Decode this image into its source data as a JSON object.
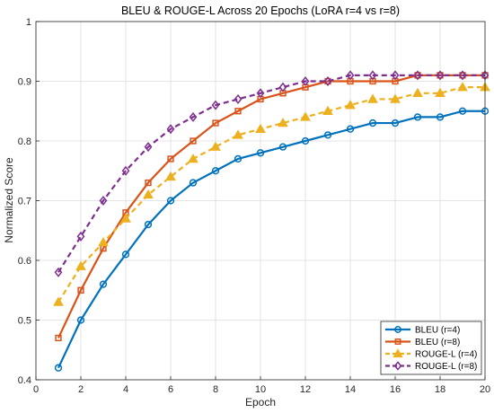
{
  "chart_data": {
    "type": "line",
    "title": "BLEU & ROUGE-L Across 20 Epochs (LoRA r=4 vs r=8)",
    "xlabel": "Epoch",
    "ylabel": "Normalized Score",
    "xlim": [
      0,
      20
    ],
    "ylim": [
      0.4,
      1.0
    ],
    "xticks": [
      "0",
      "2",
      "4",
      "6",
      "8",
      "10",
      "12",
      "14",
      "16",
      "18",
      "20"
    ],
    "yticks": [
      "0.4",
      "0.5",
      "0.6",
      "0.7",
      "0.8",
      "0.9",
      "1"
    ],
    "grid": true,
    "legend_position": "bottom-right",
    "x": [
      1,
      2,
      3,
      4,
      5,
      6,
      7,
      8,
      9,
      10,
      11,
      12,
      13,
      14,
      15,
      16,
      17,
      18,
      19,
      20
    ],
    "series": [
      {
        "name": "BLEU (r=4)",
        "color": "#0072BD",
        "marker": "circle",
        "line_style": "solid",
        "values": [
          0.42,
          0.5,
          0.56,
          0.61,
          0.66,
          0.7,
          0.73,
          0.75,
          0.77,
          0.78,
          0.79,
          0.8,
          0.81,
          0.82,
          0.83,
          0.83,
          0.84,
          0.84,
          0.85,
          0.85
        ]
      },
      {
        "name": "BLEU (r=8)",
        "color": "#D95319",
        "marker": "square",
        "line_style": "solid",
        "values": [
          0.47,
          0.55,
          0.62,
          0.68,
          0.73,
          0.77,
          0.8,
          0.83,
          0.85,
          0.87,
          0.88,
          0.89,
          0.9,
          0.9,
          0.9,
          0.9,
          0.91,
          0.91,
          0.91,
          0.91
        ]
      },
      {
        "name": "ROUGE-L (r=4)",
        "color": "#EDB120",
        "marker": "triangle",
        "line_style": "dashed",
        "values": [
          0.53,
          0.59,
          0.63,
          0.67,
          0.71,
          0.74,
          0.77,
          0.79,
          0.81,
          0.82,
          0.83,
          0.84,
          0.85,
          0.86,
          0.87,
          0.87,
          0.88,
          0.88,
          0.89,
          0.89
        ]
      },
      {
        "name": "ROUGE-L (r=8)",
        "color": "#7E2F8E",
        "marker": "diamond",
        "line_style": "dashed",
        "values": [
          0.58,
          0.64,
          0.7,
          0.75,
          0.79,
          0.82,
          0.84,
          0.86,
          0.87,
          0.88,
          0.89,
          0.9,
          0.9,
          0.91,
          0.91,
          0.91,
          0.91,
          0.91,
          0.91,
          0.91
        ]
      }
    ]
  }
}
